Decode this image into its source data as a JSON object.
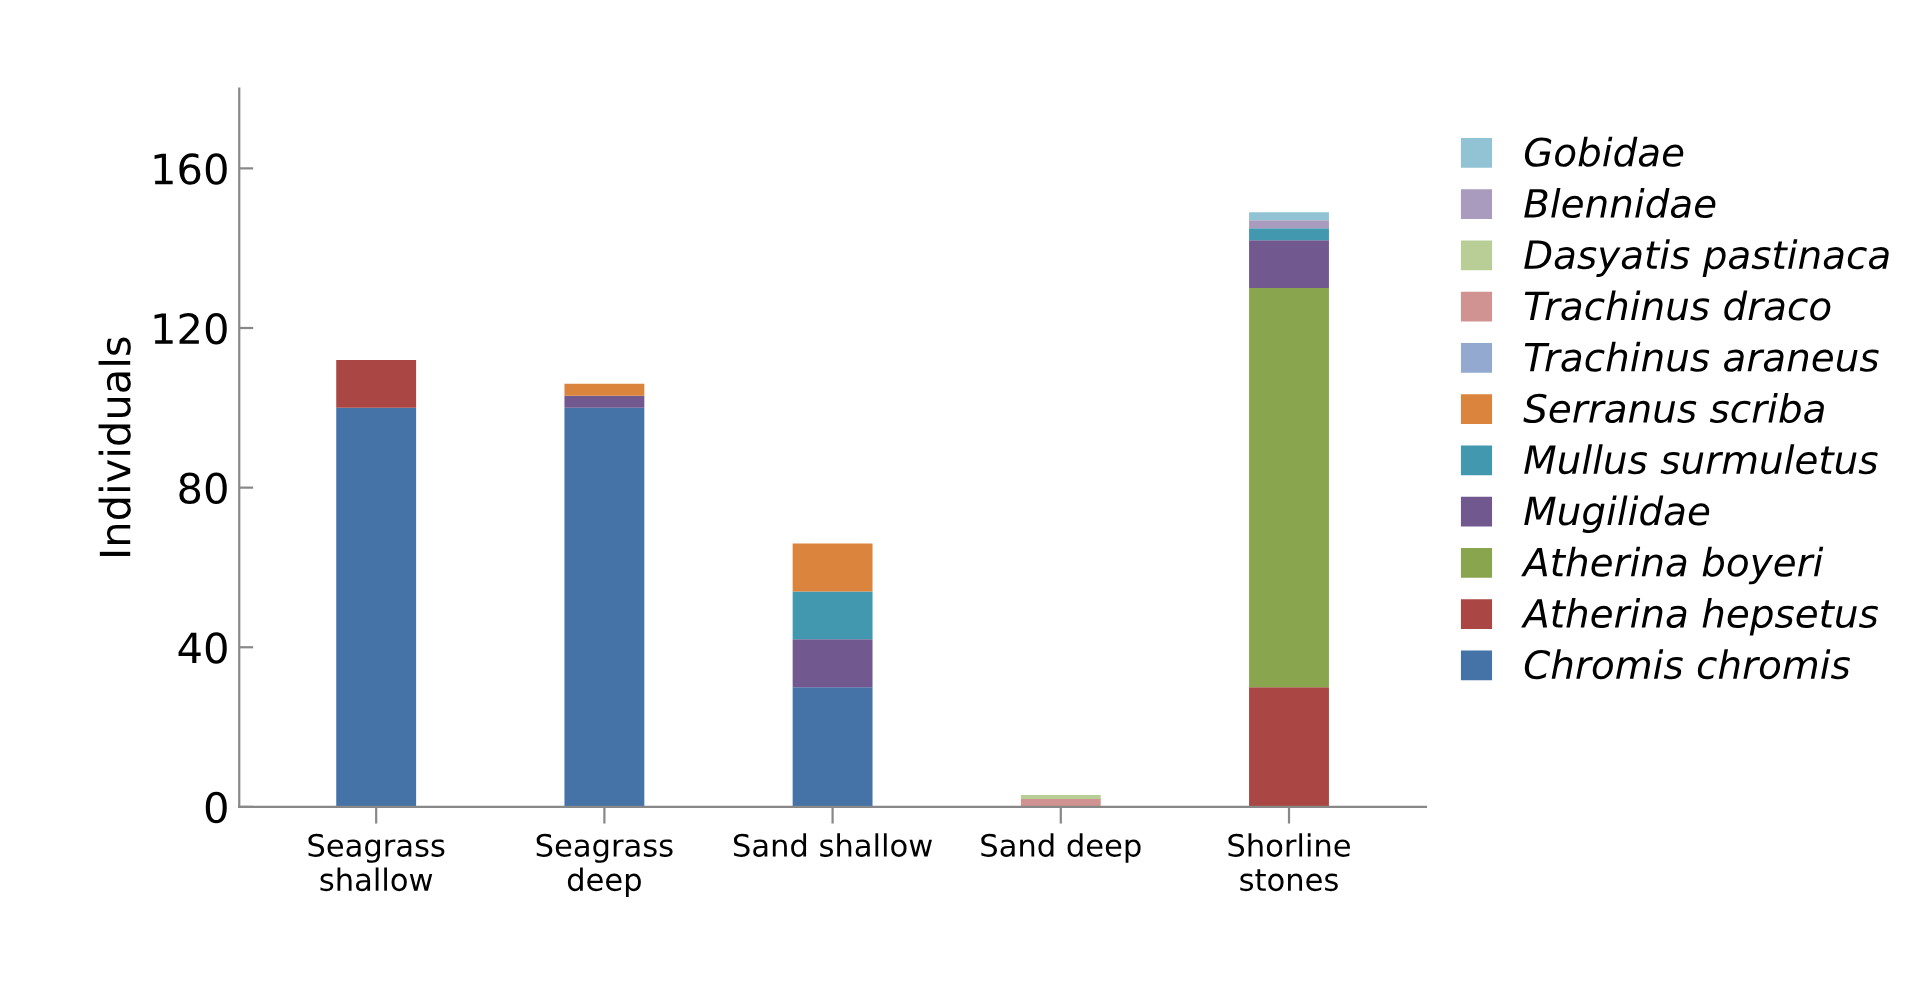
{
  "chart_data": {
    "type": "bar",
    "stacked": true,
    "ylabel": "Individuals",
    "categories": [
      "Seagrass\nshallow",
      "Seagrass\ndeep",
      "Sand shallow",
      "Sand deep",
      "Shorline\nstones"
    ],
    "series": [
      {
        "name": "Chromis chromis",
        "color": "#4572a7",
        "values": [
          100,
          100,
          30,
          0,
          0
        ]
      },
      {
        "name": "Atherina hepsetus",
        "color": "#aa4643",
        "values": [
          12,
          0,
          0,
          0,
          30
        ]
      },
      {
        "name": "Atherina boyeri",
        "color": "#89a54e",
        "values": [
          0,
          0,
          0,
          0,
          100
        ]
      },
      {
        "name": "Mugilidae",
        "color": "#71588f",
        "values": [
          0,
          3,
          12,
          0,
          12
        ]
      },
      {
        "name": "Mullus surmuletus",
        "color": "#4198af",
        "values": [
          0,
          0,
          12,
          0,
          3
        ]
      },
      {
        "name": "Serranus scriba",
        "color": "#db843d",
        "values": [
          0,
          3,
          12,
          0,
          0
        ]
      },
      {
        "name": "Trachinus araneus",
        "color": "#93a9cf",
        "values": [
          0,
          0,
          0,
          0,
          0
        ]
      },
      {
        "name": "Trachinus draco",
        "color": "#d19392",
        "values": [
          0,
          0,
          0,
          2,
          0
        ]
      },
      {
        "name": "Dasyatis pastinaca",
        "color": "#b9cd96",
        "values": [
          0,
          0,
          0,
          1,
          0
        ]
      },
      {
        "name": "Blennidae",
        "color": "#a99bbd",
        "values": [
          0,
          0,
          0,
          0,
          2
        ]
      },
      {
        "name": "Gobidae",
        "color": "#92c3d5",
        "values": [
          0,
          0,
          0,
          0,
          2
        ]
      }
    ],
    "ylim": [
      0,
      180
    ],
    "yticks": [
      0,
      40,
      80,
      120,
      160
    ],
    "grid": false,
    "legend": "right"
  }
}
